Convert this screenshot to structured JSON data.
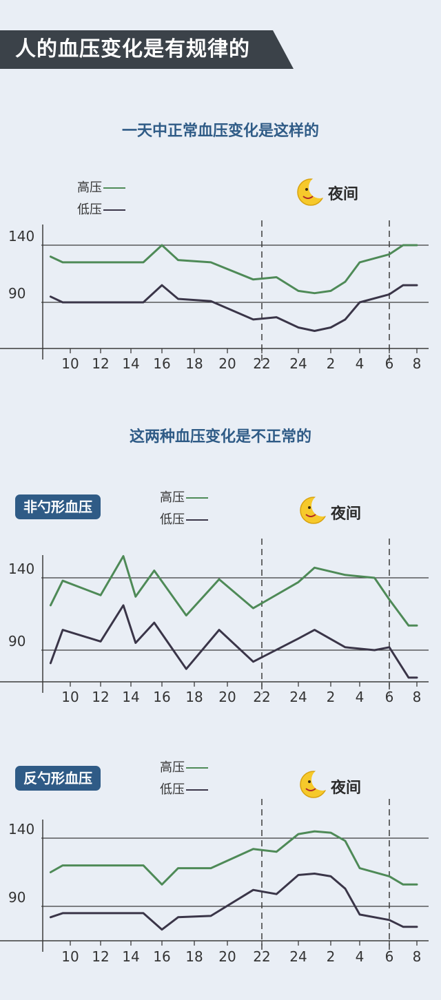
{
  "header": {
    "title": "人的血压变化是有规律的"
  },
  "sections": {
    "normal_heading": "一天中正常血压变化是这样的",
    "abnormal_heading": "这两种血压变化是不正常的"
  },
  "legend": {
    "high": "高压",
    "low": "低压"
  },
  "night_label": "夜间",
  "colors": {
    "high": "#4e8a57",
    "low": "#3a3548",
    "accent": "#2f5b86"
  },
  "chart_data": [
    {
      "type": "line",
      "title": "",
      "badge": "",
      "x_tick_labels": [
        "10",
        "12",
        "14",
        "16",
        "18",
        "20",
        "22",
        "24",
        "2",
        "4",
        "6",
        "8"
      ],
      "y_tick_labels": [
        "140",
        "90"
      ],
      "reference_lines": [
        140,
        90
      ],
      "ylim": [
        50,
        170
      ],
      "night_span": [
        "22",
        "6"
      ],
      "series": [
        {
          "name": "高压",
          "points": [
            [
              8.7,
              130
            ],
            [
              9.5,
              125
            ],
            [
              10,
              125
            ],
            [
              12,
              125
            ],
            [
              14,
              125
            ],
            [
              14.8,
              125
            ],
            [
              16,
              140
            ],
            [
              17,
              127
            ],
            [
              19,
              125
            ],
            [
              21.5,
              110
            ],
            [
              22.8,
              112
            ],
            [
              24,
              100
            ],
            [
              25,
              98
            ],
            [
              26,
              100
            ],
            [
              27,
              108
            ],
            [
              28,
              125
            ],
            [
              30,
              132
            ],
            [
              31,
              140
            ],
            [
              32,
              140
            ]
          ]
        },
        {
          "name": "低压",
          "points": [
            [
              8.7,
              95
            ],
            [
              9.5,
              90
            ],
            [
              10,
              90
            ],
            [
              12,
              90
            ],
            [
              14,
              90
            ],
            [
              14.8,
              90
            ],
            [
              16,
              105
            ],
            [
              17,
              93
            ],
            [
              19,
              91
            ],
            [
              21.5,
              75
            ],
            [
              22.8,
              77
            ],
            [
              24,
              68
            ],
            [
              25,
              65
            ],
            [
              26,
              68
            ],
            [
              27,
              75
            ],
            [
              28,
              90
            ],
            [
              30,
              97
            ],
            [
              31,
              105
            ],
            [
              32,
              105
            ]
          ]
        }
      ]
    },
    {
      "type": "line",
      "title": "",
      "badge": "非勺形血压",
      "x_tick_labels": [
        "10",
        "12",
        "14",
        "16",
        "18",
        "20",
        "22",
        "24",
        "2",
        "4",
        "6",
        "8"
      ],
      "y_tick_labels": [
        "140",
        "90"
      ],
      "reference_lines": [
        140,
        90
      ],
      "ylim": [
        50,
        170
      ],
      "night_span": [
        "22",
        "6"
      ],
      "series": [
        {
          "name": "高压",
          "points": [
            [
              8.7,
              121
            ],
            [
              9.5,
              138
            ],
            [
              12,
              128
            ],
            [
              13.5,
              155
            ],
            [
              14.3,
              127
            ],
            [
              15.5,
              145
            ],
            [
              17.5,
              114
            ],
            [
              19.5,
              139
            ],
            [
              21.5,
              119
            ],
            [
              24,
              137
            ],
            [
              25,
              147
            ],
            [
              27,
              142
            ],
            [
              29,
              140
            ],
            [
              30,
              125
            ],
            [
              31.4,
              107
            ],
            [
              32,
              107
            ]
          ]
        },
        {
          "name": "低压",
          "points": [
            [
              8.7,
              81
            ],
            [
              9.5,
              104
            ],
            [
              12,
              96
            ],
            [
              13.5,
              121
            ],
            [
              14.3,
              95
            ],
            [
              15.5,
              109
            ],
            [
              17.5,
              77
            ],
            [
              19.5,
              104
            ],
            [
              21.5,
              82
            ],
            [
              24,
              98
            ],
            [
              25,
              104
            ],
            [
              27,
              92
            ],
            [
              29,
              90
            ],
            [
              30,
              92
            ],
            [
              31.4,
              71
            ],
            [
              32,
              71
            ]
          ]
        }
      ]
    },
    {
      "type": "line",
      "title": "",
      "badge": "反勺形血压",
      "x_tick_labels": [
        "10",
        "12",
        "14",
        "16",
        "18",
        "20",
        "22",
        "24",
        "2",
        "4",
        "6",
        "8"
      ],
      "y_tick_labels": [
        "140",
        "90"
      ],
      "reference_lines": [
        140,
        90
      ],
      "ylim": [
        50,
        170
      ],
      "night_span": [
        "22",
        "6"
      ],
      "series": [
        {
          "name": "高压",
          "points": [
            [
              8.7,
              115
            ],
            [
              9.5,
              120
            ],
            [
              10,
              120
            ],
            [
              12,
              120
            ],
            [
              14,
              120
            ],
            [
              14.8,
              120
            ],
            [
              16,
              106
            ],
            [
              17,
              118
            ],
            [
              19,
              118
            ],
            [
              21.5,
              132
            ],
            [
              22.8,
              130
            ],
            [
              24,
              143
            ],
            [
              25,
              145
            ],
            [
              26,
              144
            ],
            [
              27,
              138
            ],
            [
              28,
              118
            ],
            [
              30,
              112
            ],
            [
              31,
              106
            ],
            [
              32,
              106
            ]
          ]
        },
        {
          "name": "低压",
          "points": [
            [
              8.7,
              82
            ],
            [
              9.5,
              85
            ],
            [
              10,
              85
            ],
            [
              12,
              85
            ],
            [
              14,
              85
            ],
            [
              14.8,
              85
            ],
            [
              16,
              73
            ],
            [
              17,
              82
            ],
            [
              19,
              83
            ],
            [
              21.5,
              102
            ],
            [
              22.8,
              99
            ],
            [
              24,
              113
            ],
            [
              25,
              114
            ],
            [
              26,
              112
            ],
            [
              27,
              103
            ],
            [
              28,
              84
            ],
            [
              30,
              80
            ],
            [
              31,
              75
            ],
            [
              32,
              75
            ]
          ]
        }
      ]
    }
  ]
}
